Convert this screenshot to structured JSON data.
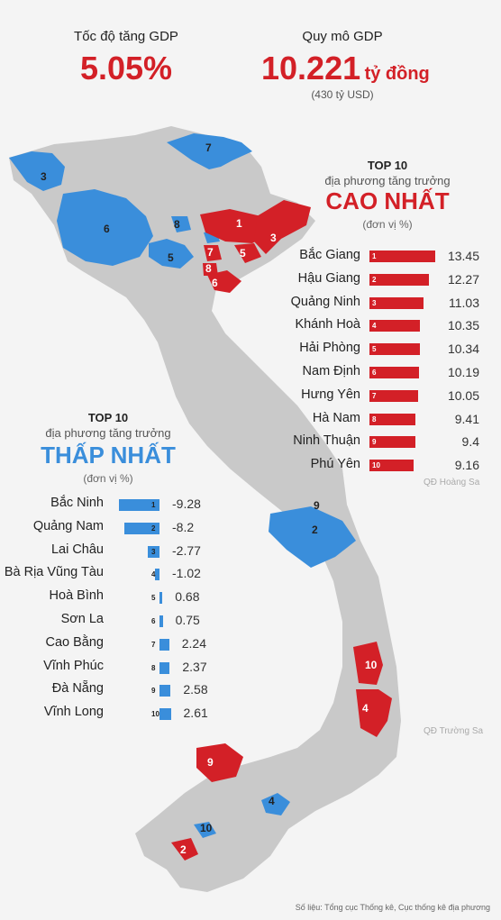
{
  "header": {
    "growth_label": "Tốc độ tăng GDP",
    "growth_value": "5.05%",
    "scale_label": "Quy mô GDP",
    "scale_value": "10.221",
    "scale_unit": "tỷ đồng",
    "scale_usd": "(430 tỷ USD)"
  },
  "top_section": {
    "title": "TOP 10",
    "subtitle": "địa phương tăng trưởng",
    "headline": "CAO NHẤT",
    "unit": "(đơn vị %)"
  },
  "bottom_section": {
    "title": "TOP 10",
    "subtitle": "địa phương tăng trưởng",
    "headline": "THẤP NHẤT",
    "unit": "(đơn vị %)"
  },
  "map_labels": {
    "hoang_sa": "QĐ Hoàng Sa",
    "truong_sa": "QĐ Trường Sa"
  },
  "source": "Số liệu: Tổng cục Thống kê, Cục thống kê địa phương",
  "colors": {
    "high": "#d32027",
    "low": "#3a8edb",
    "land": "#c9c9c9",
    "background": "#f4f4f4"
  },
  "chart_data": [
    {
      "type": "bar",
      "categories": [
        "Bắc Giang",
        "Hậu Giang",
        "Quảng Ninh",
        "Khánh Hoà",
        "Hải Phòng",
        "Nam Định",
        "Hưng Yên",
        "Hà Nam",
        "Ninh Thuận",
        "Phú Yên"
      ],
      "ranks": [
        "1",
        "2",
        "3",
        "4",
        "5",
        "6",
        "7",
        "8",
        "9",
        "10"
      ],
      "values": [
        13.45,
        12.27,
        11.03,
        10.35,
        10.34,
        10.19,
        10.05,
        9.41,
        9.4,
        9.16
      ],
      "value_labels": [
        "13.45",
        "12.27",
        "11.03",
        "10.35",
        "10.34",
        "10.19",
        "10.05",
        "9.41",
        "9.4",
        "9.16"
      ]
    },
    {
      "type": "bar",
      "categories": [
        "Bắc Ninh",
        "Quảng Nam",
        "Lai Châu",
        "Bà Rịa Vũng Tàu",
        "Hoà Bình",
        "Sơn La",
        "Cao Bằng",
        "Vĩnh Phúc",
        "Đà Nẵng",
        "Vĩnh Long"
      ],
      "ranks": [
        "1",
        "2",
        "3",
        "4",
        "5",
        "6",
        "7",
        "8",
        "9",
        "10"
      ],
      "values": [
        -9.28,
        -8.2,
        -2.77,
        -1.02,
        0.68,
        0.75,
        2.24,
        2.37,
        2.58,
        2.61
      ],
      "value_labels": [
        "-9.28",
        "-8.2",
        "-2.77",
        "-1.02",
        "0.68",
        "0.75",
        "2.24",
        "2.37",
        "2.58",
        "2.61"
      ]
    }
  ]
}
